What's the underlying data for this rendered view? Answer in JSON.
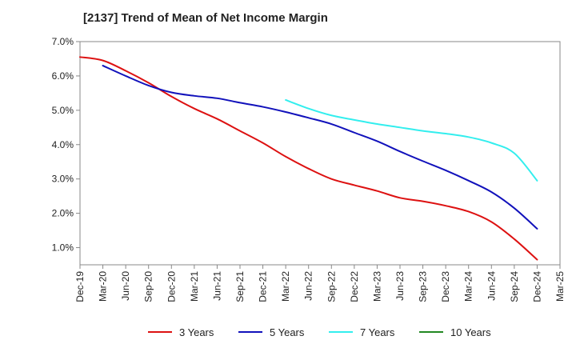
{
  "chart_data": {
    "type": "line",
    "title": "[2137]  Trend of Mean of Net Income Margin",
    "xlabel": "",
    "ylabel": "",
    "ylim": [
      0.5,
      7.0
    ],
    "yticks": [
      1.0,
      2.0,
      3.0,
      4.0,
      5.0,
      6.0,
      7.0
    ],
    "ytick_labels": [
      "1.0%",
      "2.0%",
      "3.0%",
      "4.0%",
      "5.0%",
      "6.0%",
      "7.0%"
    ],
    "xtick_labels": [
      "Dec-19",
      "Mar-20",
      "Jun-20",
      "Sep-20",
      "Dec-20",
      "Mar-21",
      "Jun-21",
      "Sep-21",
      "Dec-21",
      "Mar-22",
      "Jun-22",
      "Sep-22",
      "Dec-22",
      "Mar-23",
      "Jun-23",
      "Sep-23",
      "Dec-23",
      "Mar-24",
      "Jun-24",
      "Sep-24",
      "Dec-24",
      "Mar-25"
    ],
    "grid": false,
    "legend_position": "bottom",
    "series": [
      {
        "name": "3 Years",
        "color": "#dd1111",
        "start_index": 0,
        "values": [
          6.55,
          6.45,
          6.15,
          5.8,
          5.4,
          5.05,
          4.75,
          4.4,
          4.05,
          3.65,
          3.3,
          3.0,
          2.82,
          2.65,
          2.45,
          2.35,
          2.22,
          2.05,
          1.75,
          1.25,
          0.65
        ]
      },
      {
        "name": "5 Years",
        "color": "#1111bb",
        "start_index": 1,
        "values": [
          6.3,
          6.0,
          5.72,
          5.52,
          5.42,
          5.35,
          5.22,
          5.1,
          4.95,
          4.78,
          4.6,
          4.35,
          4.1,
          3.8,
          3.52,
          3.25,
          2.95,
          2.62,
          2.15,
          1.55
        ]
      },
      {
        "name": "7 Years",
        "color": "#33eeee",
        "start_index": 9,
        "values": [
          5.3,
          5.05,
          4.85,
          4.72,
          4.6,
          4.5,
          4.4,
          4.32,
          4.22,
          4.05,
          3.75,
          2.95
        ]
      },
      {
        "name": "10 Years",
        "color": "#228822",
        "start_index": 0,
        "values": []
      }
    ]
  }
}
